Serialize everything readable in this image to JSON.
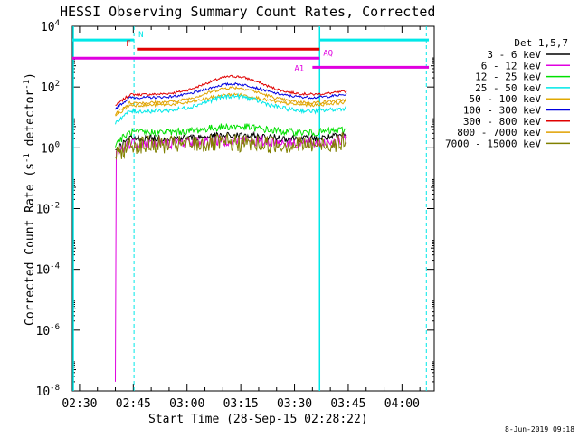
{
  "chart_data": {
    "type": "line",
    "title": "HESSI Observing Summary Count Rates, Corrected",
    "ylabel_main": "Corrected Count Rate (s",
    "ylabel_sup1": "-1",
    "ylabel_mid": " detector",
    "ylabel_sup2": "-1",
    "ylabel_end": ")",
    "xlabel": "Start Time (28-Sep-15 02:28:22)",
    "footer_date": "8-Jun-2019 09:18",
    "y_scale": "log",
    "ylim": [
      1e-08,
      10000.0
    ],
    "xlim": [
      "02:28:22",
      "04:12"
    ],
    "x_ticks": [
      {
        "t": 2.0,
        "label": "02:30"
      },
      {
        "t": 17.0,
        "label": "02:45"
      },
      {
        "t": 32.0,
        "label": "03:00"
      },
      {
        "t": 47.0,
        "label": "03:15"
      },
      {
        "t": 62.0,
        "label": "03:30"
      },
      {
        "t": 77.0,
        "label": "03:45"
      },
      {
        "t": 92.0,
        "label": "04:00"
      }
    ],
    "y_ticks": [
      {
        "exp": 4,
        "base": "10",
        "sup": "4"
      },
      {
        "exp": 2,
        "base": "10",
        "sup": "2"
      },
      {
        "exp": 0,
        "base": "10",
        "sup": "0"
      },
      {
        "exp": -2,
        "base": "10",
        "sup": "-2"
      },
      {
        "exp": -4,
        "base": "10",
        "sup": "-4"
      },
      {
        "exp": -6,
        "base": "10",
        "sup": "-6"
      },
      {
        "exp": -8,
        "base": "10",
        "sup": "-8"
      }
    ],
    "legend": {
      "title": "Det 1,5,7",
      "placement": "right",
      "entries": [
        {
          "label": "3 - 6 keV",
          "color": "#000000"
        },
        {
          "label": "6 - 12 keV",
          "color": "#e000e0"
        },
        {
          "label": "12 - 25 keV",
          "color": "#00e000"
        },
        {
          "label": "25 - 50 keV",
          "color": "#00e8e8"
        },
        {
          "label": "50 - 100 keV",
          "color": "#e0a800"
        },
        {
          "label": "100 - 300 keV",
          "color": "#0000e0"
        },
        {
          "label": "300 - 800 keV",
          "color": "#e00000"
        },
        {
          "label": "800 - 7000 keV",
          "color": "#e0a000"
        },
        {
          "label": "7000 - 15000 keV",
          "color": "#808000"
        }
      ]
    },
    "flags": [
      {
        "name": "N",
        "color": "#00e8e8",
        "log_level": 3.55,
        "segments": [
          [
            0,
            17.2
          ],
          [
            69.0,
            99.5
          ]
        ]
      },
      {
        "name": "F",
        "color": "#e00000",
        "log_level": 3.25,
        "segments": [
          [
            18.0,
            69.0
          ]
        ]
      },
      {
        "name": "AQ",
        "color": "#e000e0",
        "log_level": 2.95,
        "segments": [
          [
            0,
            69.0
          ]
        ]
      },
      {
        "name": "A1",
        "color": "#e000e0",
        "log_level": 2.65,
        "segments": [
          [
            67.0,
            99.5
          ]
        ]
      }
    ],
    "night_bounds": [
      17.2,
      98.8
    ],
    "data_span": [
      12.0,
      76.5
    ],
    "series": [
      {
        "band": "300 - 800 keV",
        "color": "#e00000",
        "log_base": 1.75,
        "peak": 0.6,
        "noise": 0.04
      },
      {
        "band": "100 - 300 keV",
        "color": "#0000e0",
        "log_base": 1.65,
        "peak": 0.45,
        "noise": 0.04
      },
      {
        "band": "800 - 7000 keV",
        "color": "#e0a000",
        "log_base": 1.48,
        "peak": 0.5,
        "noise": 0.05
      },
      {
        "band": "50 - 100 keV",
        "color": "#e0a800",
        "log_base": 1.4,
        "peak": 0.35,
        "noise": 0.05
      },
      {
        "band": "25 - 50 keV",
        "color": "#00e8e8",
        "log_base": 1.2,
        "peak": 0.5,
        "noise": 0.07
      },
      {
        "band": "12 - 25 keV",
        "color": "#00e000",
        "log_base": 0.5,
        "peak": 0.2,
        "noise": 0.12
      },
      {
        "band": "3 - 6 keV",
        "color": "#000000",
        "log_base": 0.3,
        "peak": 0.1,
        "noise": 0.12
      },
      {
        "band": "6 - 12 keV",
        "color": "#e000e0",
        "log_base": 0.15,
        "peak": 0.1,
        "noise": 0.18
      },
      {
        "band": "7000 - 15000 keV",
        "color": "#808000",
        "log_base": 0.1,
        "peak": 0.05,
        "noise": 0.3
      }
    ]
  }
}
